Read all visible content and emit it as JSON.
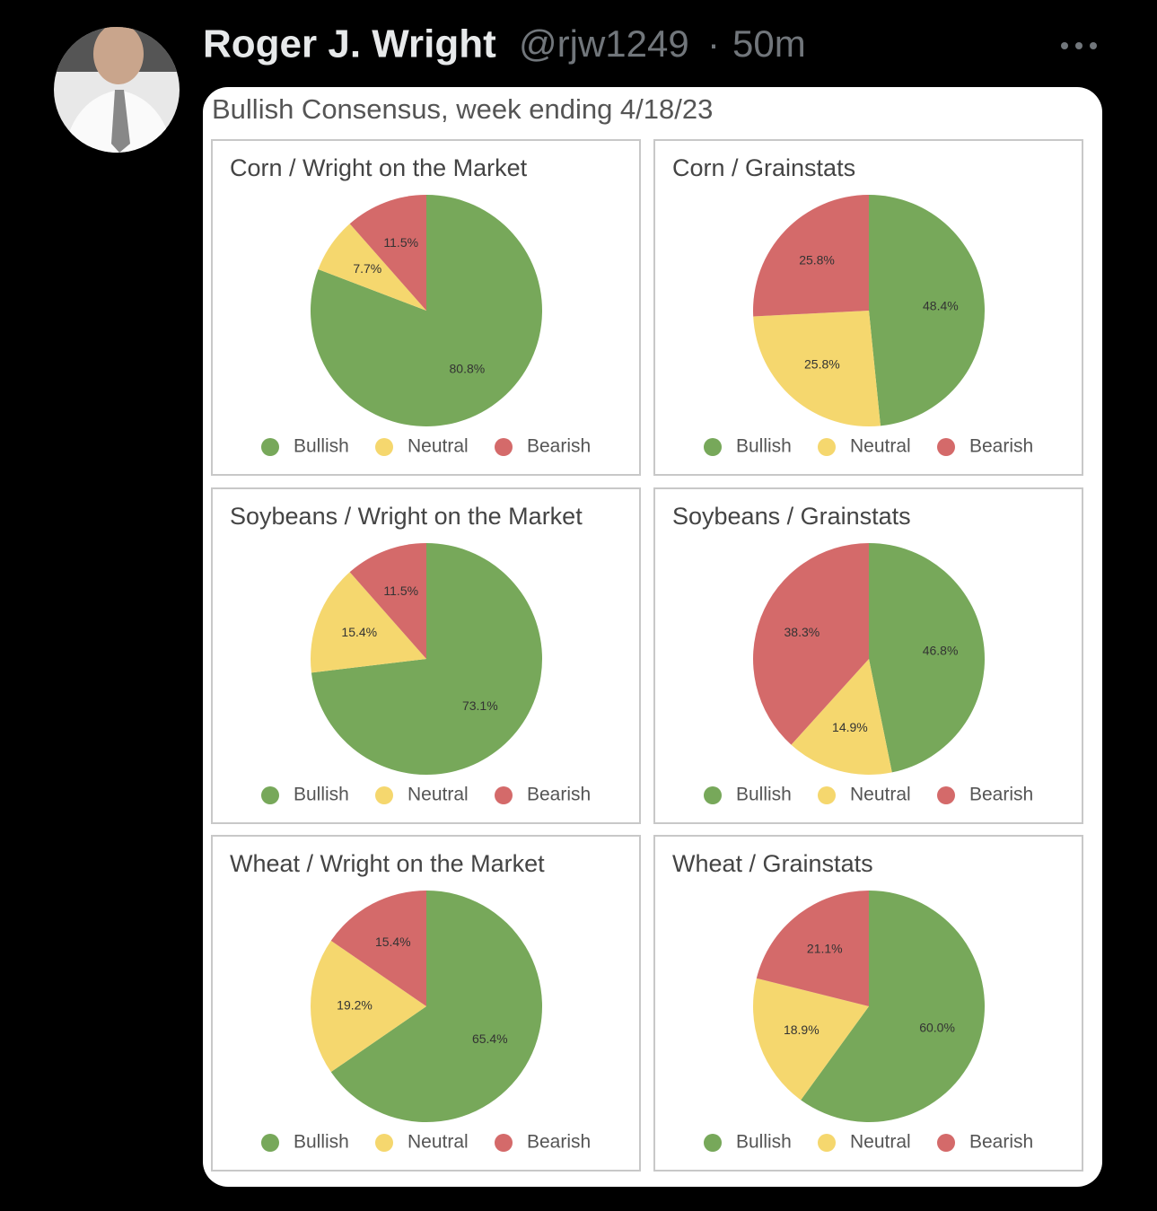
{
  "tweet": {
    "name": "Roger J. Wright",
    "handle": "@rjw1249",
    "separator": "·",
    "time": "50m"
  },
  "image_title": "Bullish Consensus, week ending 4/18/23",
  "chart_data": [
    {
      "type": "pie",
      "title": "Corn / Wright on the Market",
      "categories": [
        "Bullish",
        "Neutral",
        "Bearish"
      ],
      "values": [
        80.8,
        7.7,
        11.5
      ],
      "value_labels": [
        "80.8%",
        "7.7%",
        "11.5%"
      ],
      "colors": [
        "#77a85a",
        "#f5d76e",
        "#d46a6a"
      ]
    },
    {
      "type": "pie",
      "title": "Corn / Grainstats",
      "categories": [
        "Bullish",
        "Neutral",
        "Bearish"
      ],
      "values": [
        48.4,
        25.8,
        25.8
      ],
      "value_labels": [
        "48.4%",
        "25.8%",
        "25.8%"
      ],
      "colors": [
        "#77a85a",
        "#f5d76e",
        "#d46a6a"
      ]
    },
    {
      "type": "pie",
      "title": "Soybeans / Wright on the Market",
      "categories": [
        "Bullish",
        "Neutral",
        "Bearish"
      ],
      "values": [
        73.1,
        15.4,
        11.5
      ],
      "value_labels": [
        "73.1%",
        "15.4%",
        "11.5%"
      ],
      "colors": [
        "#77a85a",
        "#f5d76e",
        "#d46a6a"
      ]
    },
    {
      "type": "pie",
      "title": "Soybeans / Grainstats",
      "categories": [
        "Bullish",
        "Neutral",
        "Bearish"
      ],
      "values": [
        46.8,
        14.9,
        38.3
      ],
      "value_labels": [
        "46.8%",
        "14.9%",
        "38.3%"
      ],
      "colors": [
        "#77a85a",
        "#f5d76e",
        "#d46a6a"
      ]
    },
    {
      "type": "pie",
      "title": "Wheat / Wright on the Market",
      "categories": [
        "Bullish",
        "Neutral",
        "Bearish"
      ],
      "values": [
        65.4,
        19.2,
        15.4
      ],
      "value_labels": [
        "65.4%",
        "19.2%",
        "15.4%"
      ],
      "colors": [
        "#77a85a",
        "#f5d76e",
        "#d46a6a"
      ]
    },
    {
      "type": "pie",
      "title": "Wheat / Grainstats",
      "categories": [
        "Bullish",
        "Neutral",
        "Bearish"
      ],
      "values": [
        60,
        18.9,
        21.1
      ],
      "value_labels": [
        "60.0%",
        "18.9%",
        "21.1%"
      ],
      "colors": [
        "#77a85a",
        "#f5d76e",
        "#d46a6a"
      ]
    }
  ]
}
